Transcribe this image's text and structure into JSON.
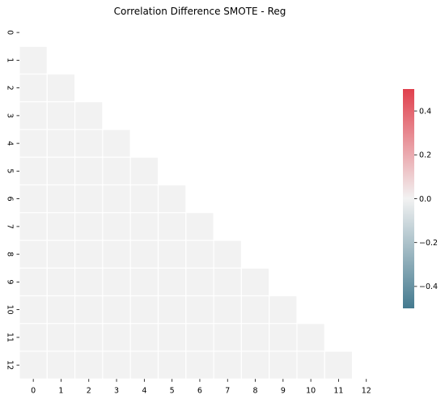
{
  "chart_data": {
    "type": "heatmap",
    "title": "Correlation Difference SMOTE - Reg",
    "xlabel": "",
    "ylabel": "",
    "x_ticks": [
      "0",
      "1",
      "2",
      "3",
      "4",
      "5",
      "6",
      "7",
      "8",
      "9",
      "10",
      "11",
      "12"
    ],
    "y_ticks": [
      "0",
      "1",
      "2",
      "3",
      "4",
      "5",
      "6",
      "7",
      "8",
      "9",
      "10",
      "11",
      "12"
    ],
    "mask": "upper-triangle-including-diagonal",
    "values": [
      [
        null,
        null,
        null,
        null,
        null,
        null,
        null,
        null,
        null,
        null,
        null,
        null,
        null
      ],
      [
        0,
        null,
        null,
        null,
        null,
        null,
        null,
        null,
        null,
        null,
        null,
        null,
        null
      ],
      [
        0,
        0,
        null,
        null,
        null,
        null,
        null,
        null,
        null,
        null,
        null,
        null,
        null
      ],
      [
        0,
        0,
        0,
        null,
        null,
        null,
        null,
        null,
        null,
        null,
        null,
        null,
        null
      ],
      [
        0,
        0,
        0,
        0,
        null,
        null,
        null,
        null,
        null,
        null,
        null,
        null,
        null
      ],
      [
        0,
        0,
        0,
        0,
        0,
        null,
        null,
        null,
        null,
        null,
        null,
        null,
        null
      ],
      [
        0,
        0,
        0,
        0,
        0,
        0,
        null,
        null,
        null,
        null,
        null,
        null,
        null
      ],
      [
        0,
        0,
        0,
        0,
        0,
        0,
        0,
        null,
        null,
        null,
        null,
        null,
        null
      ],
      [
        0,
        0,
        0,
        0,
        0,
        0,
        0,
        0,
        null,
        null,
        null,
        null,
        null
      ],
      [
        0,
        0,
        0,
        0,
        0,
        0,
        0,
        0,
        0,
        null,
        null,
        null,
        null
      ],
      [
        0,
        0,
        0,
        0,
        0,
        0,
        0,
        0,
        0,
        0,
        null,
        null,
        null
      ],
      [
        0,
        0,
        0,
        0,
        0,
        0,
        0,
        0,
        0,
        0,
        0,
        null,
        null
      ],
      [
        0,
        0,
        0,
        0,
        0,
        0,
        0,
        0,
        0,
        0,
        0,
        0,
        null
      ]
    ],
    "colorbar": {
      "range": [
        -0.5,
        0.5
      ],
      "ticks": [
        -0.4,
        -0.2,
        0.0,
        0.2,
        0.4
      ],
      "tick_labels": [
        "−0.4",
        "−0.2",
        "0.0",
        "0.2",
        "0.4"
      ],
      "colormap": "diverging blue-white-red",
      "color_low": "#447a8f",
      "color_mid": "#f2f2f2",
      "color_high": "#e0404d"
    },
    "cell_separator_color": "#ffffff",
    "grid": false,
    "legend": "colorbar-right"
  }
}
